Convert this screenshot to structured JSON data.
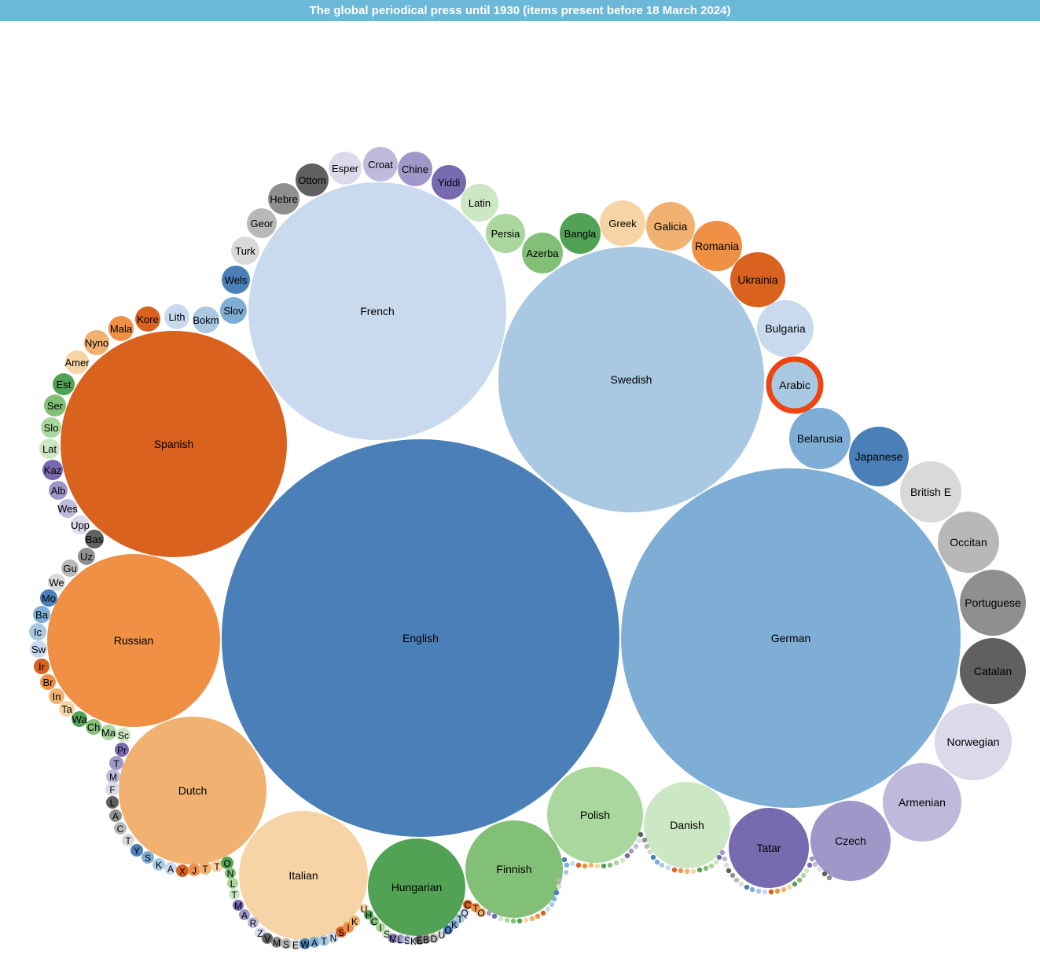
{
  "title": "The global periodical press until 1930 (items present before 18 March 2024)",
  "colors": {
    "header": "#6bb8d9",
    "highlight_ring": "#ee4411",
    "palette": [
      "#4a7fb8",
      "#7eadd5",
      "#a9c8e1",
      "#c9daef",
      "#d9621f",
      "#ef9044",
      "#f1b170",
      "#f7d4a6",
      "#52a256",
      "#82bf77",
      "#a9d79d",
      "#cbe7c3",
      "#776aaf",
      "#a097c8",
      "#bdbadc",
      "#dadaeb",
      "#606060",
      "#8f8f8f",
      "#b8b8b8",
      "#d9d9d9"
    ]
  },
  "chart_data": {
    "type": "bubble",
    "title": "The global periodical press until 1930 (items present before 18 March 2024)",
    "highlighted": "Arabic",
    "nodes": [
      {
        "label": "English",
        "color": "#4a7fb8"
      },
      {
        "label": "German",
        "color": "#7eadd5"
      },
      {
        "label": "Swedish",
        "color": "#a9c8e1"
      },
      {
        "label": "French",
        "color": "#c9daef"
      },
      {
        "label": "Spanish",
        "color": "#d9621f"
      },
      {
        "label": "Russian",
        "color": "#ef9044"
      },
      {
        "label": "Dutch",
        "color": "#f1b170"
      },
      {
        "label": "Italian",
        "color": "#f7d4a6"
      },
      {
        "label": "Hungarian",
        "color": "#52a256"
      },
      {
        "label": "Finnish",
        "color": "#82bf77"
      },
      {
        "label": "Polish",
        "color": "#a9d79d"
      },
      {
        "label": "Danish",
        "color": "#cbe7c3"
      },
      {
        "label": "Tatar",
        "color": "#776aaf"
      },
      {
        "label": "Czech",
        "color": "#a097c8"
      },
      {
        "label": "Armenian",
        "color": "#bdbadc"
      },
      {
        "label": "Norwegian",
        "color": "#dadaeb"
      },
      {
        "label": "Catalan",
        "color": "#606060"
      },
      {
        "label": "Portuguese",
        "color": "#8f8f8f"
      },
      {
        "label": "Occitan",
        "color": "#b8b8b8"
      },
      {
        "label": "British E",
        "color": "#d9d9d9"
      },
      {
        "label": "Japanese",
        "color": "#4a7fb8"
      },
      {
        "label": "Belarusia",
        "color": "#7eadd5"
      },
      {
        "label": "Arabic",
        "color": "#a9c8e1"
      },
      {
        "label": "Bulgaria",
        "color": "#c9daef"
      },
      {
        "label": "Ukrainia",
        "color": "#d9621f"
      },
      {
        "label": "Romania",
        "color": "#ef9044"
      },
      {
        "label": "Galicia",
        "color": "#f1b170"
      },
      {
        "label": "Greek",
        "color": "#f7d4a6"
      },
      {
        "label": "Bangla",
        "color": "#52a256"
      },
      {
        "label": "Azerba",
        "color": "#82bf77"
      },
      {
        "label": "Persia",
        "color": "#a9d79d"
      },
      {
        "label": "Latin",
        "color": "#cbe7c3"
      },
      {
        "label": "Yiddi",
        "color": "#776aaf"
      },
      {
        "label": "Chine",
        "color": "#a097c8"
      },
      {
        "label": "Croat",
        "color": "#bdbadc"
      },
      {
        "label": "Esper",
        "color": "#dadaeb"
      },
      {
        "label": "Ottom",
        "color": "#606060"
      },
      {
        "label": "Hebre",
        "color": "#8f8f8f"
      },
      {
        "label": "Geor",
        "color": "#b8b8b8"
      },
      {
        "label": "Turk",
        "color": "#d9d9d9"
      },
      {
        "label": "Wels",
        "color": "#4a7fb8"
      },
      {
        "label": "Slov",
        "color": "#7eadd5"
      },
      {
        "label": "Bokm",
        "color": "#a9c8e1"
      },
      {
        "label": "Lith",
        "color": "#c9daef"
      },
      {
        "label": "Kore",
        "color": "#d9621f"
      },
      {
        "label": "Mala",
        "color": "#ef9044"
      },
      {
        "label": "Nyno",
        "color": "#f1b170"
      },
      {
        "label": "Amer",
        "color": "#f7d4a6"
      },
      {
        "label": "Est",
        "color": "#52a256"
      },
      {
        "label": "Ser",
        "color": "#82bf77"
      },
      {
        "label": "Slo",
        "color": "#a9d79d"
      },
      {
        "label": "Lat",
        "color": "#cbe7c3"
      },
      {
        "label": "Kaz",
        "color": "#776aaf"
      },
      {
        "label": "Alb",
        "color": "#a097c8"
      },
      {
        "label": "Wes",
        "color": "#bdbadc"
      },
      {
        "label": "Upp",
        "color": "#dadaeb"
      },
      {
        "label": "Bas",
        "color": "#606060"
      },
      {
        "label": "Uz",
        "color": "#8f8f8f"
      },
      {
        "label": "Gu",
        "color": "#b8b8b8"
      },
      {
        "label": "We",
        "color": "#d9d9d9"
      },
      {
        "label": "Mo",
        "color": "#4a7fb8"
      },
      {
        "label": "Ba",
        "color": "#7eadd5"
      },
      {
        "label": "Ic",
        "color": "#a9c8e1"
      },
      {
        "label": "Sw",
        "color": "#c9daef"
      },
      {
        "label": "Ir",
        "color": "#d9621f"
      },
      {
        "label": "Br",
        "color": "#ef9044"
      },
      {
        "label": "In",
        "color": "#f1b170"
      },
      {
        "label": "Ta",
        "color": "#f7d4a6"
      },
      {
        "label": "Wa",
        "color": "#52a256"
      },
      {
        "label": "Ch",
        "color": "#82bf77"
      },
      {
        "label": "Ma",
        "color": "#a9d79d"
      },
      {
        "label": "Sc",
        "color": "#cbe7c3"
      },
      {
        "label": "Pr",
        "color": "#776aaf"
      },
      {
        "label": "T",
        "color": "#a097c8"
      },
      {
        "label": "M",
        "color": "#bdbadc"
      },
      {
        "label": "F",
        "color": "#dadaeb"
      },
      {
        "label": "L",
        "color": "#606060"
      },
      {
        "label": "A",
        "color": "#8f8f8f"
      },
      {
        "label": "C",
        "color": "#b8b8b8"
      },
      {
        "label": "T",
        "color": "#d9d9d9"
      },
      {
        "label": "Y",
        "color": "#4a7fb8"
      },
      {
        "label": "S",
        "color": "#7eadd5"
      },
      {
        "label": "K",
        "color": "#a9c8e1"
      },
      {
        "label": "A",
        "color": "#c9daef"
      },
      {
        "label": "X",
        "color": "#d9621f"
      },
      {
        "label": "J",
        "color": "#ef9044"
      },
      {
        "label": "T",
        "color": "#f1b170"
      },
      {
        "label": "T",
        "color": "#f7d4a6"
      },
      {
        "label": "O",
        "color": "#52a256"
      },
      {
        "label": "N",
        "color": "#82bf77"
      },
      {
        "label": "L",
        "color": "#a9d79d"
      },
      {
        "label": "T",
        "color": "#cbe7c3"
      },
      {
        "label": "M",
        "color": "#776aaf"
      },
      {
        "label": "A",
        "color": "#a097c8"
      },
      {
        "label": "R",
        "color": "#bdbadc"
      },
      {
        "label": "Z",
        "color": "#dadaeb"
      },
      {
        "label": "V",
        "color": "#606060"
      },
      {
        "label": "M",
        "color": "#8f8f8f"
      },
      {
        "label": "S",
        "color": "#b8b8b8"
      },
      {
        "label": "E",
        "color": "#d9d9d9"
      },
      {
        "label": "W",
        "color": "#4a7fb8"
      },
      {
        "label": "A",
        "color": "#7eadd5"
      },
      {
        "label": "T",
        "color": "#a9c8e1"
      },
      {
        "label": "N",
        "color": "#c9daef"
      },
      {
        "label": "S",
        "color": "#d9621f"
      },
      {
        "label": "I",
        "color": "#ef9044"
      },
      {
        "label": "K",
        "color": "#f1b170"
      },
      {
        "label": "U",
        "color": "#f7d4a6"
      },
      {
        "label": "H",
        "color": "#52a256"
      },
      {
        "label": "C",
        "color": "#82bf77"
      },
      {
        "label": "I",
        "color": "#a9d79d"
      },
      {
        "label": "S",
        "color": "#cbe7c3"
      },
      {
        "label": "M",
        "color": "#776aaf"
      },
      {
        "label": "L",
        "color": "#a097c8"
      },
      {
        "label": "S",
        "color": "#bdbadc"
      },
      {
        "label": "K",
        "color": "#dadaeb"
      },
      {
        "label": "E",
        "color": "#606060"
      },
      {
        "label": "B",
        "color": "#8f8f8f"
      },
      {
        "label": "D",
        "color": "#b8b8b8"
      },
      {
        "label": "U",
        "color": "#d9d9d9"
      },
      {
        "label": "O",
        "color": "#4a7fb8"
      },
      {
        "label": "K",
        "color": "#7eadd5"
      },
      {
        "label": "T",
        "color": "#a9c8e1"
      },
      {
        "label": "Q",
        "color": "#c9daef"
      },
      {
        "label": "C",
        "color": "#d9621f"
      },
      {
        "label": "T",
        "color": "#ef9044"
      },
      {
        "label": "O",
        "color": "#f1b170"
      }
    ]
  }
}
